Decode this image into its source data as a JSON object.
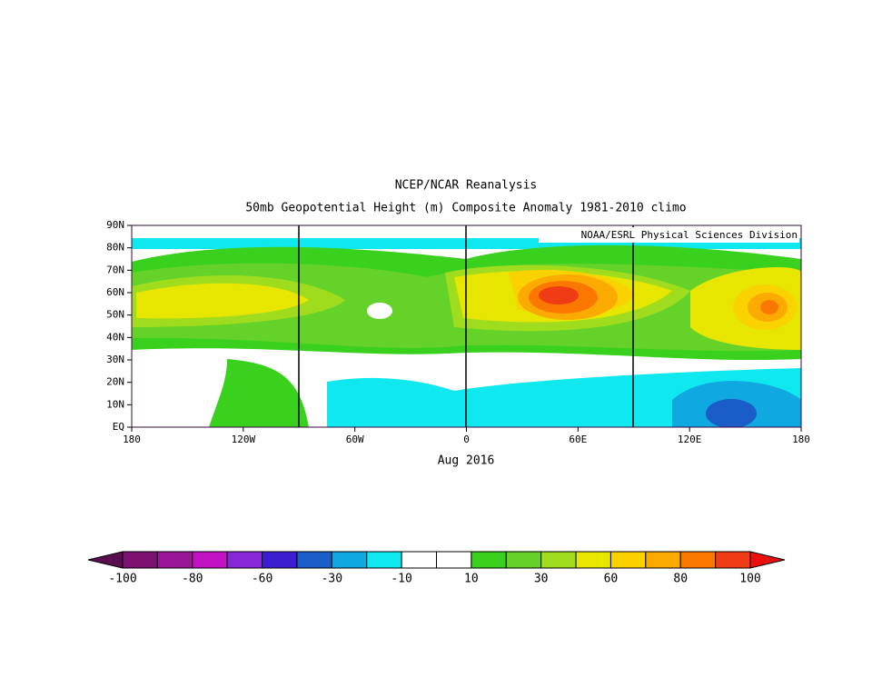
{
  "title": "NCEP/NCAR Reanalysis",
  "subtitle": "50mb Geopotential Height (m) Composite Anomaly 1981-2010 climo",
  "credit": "NOAA/ESRL Physical Sciences Division",
  "date": "Aug 2016",
  "lat_labels": [
    "EQ",
    "10N",
    "20N",
    "30N",
    "40N",
    "50N",
    "60N",
    "70N",
    "80N",
    "90N"
  ],
  "lon_labels": [
    "180",
    "120W",
    "60W",
    "0",
    "60E",
    "120E",
    "180"
  ],
  "colorbar": {
    "labels": [
      -100,
      -80,
      -60,
      -30,
      -10,
      10,
      30,
      60,
      80,
      100
    ],
    "low_color": "#5a1050",
    "high_color": "#e81010",
    "colors": [
      "#7d1270",
      "#9a1699",
      "#c012c0",
      "#8828d8",
      "#3c1ed0",
      "#1a5cc8",
      "#10a8e0",
      "#10e8f0",
      "#ffffff",
      "#ffffff",
      "#3ad01e",
      "#64d228",
      "#a0dc1e",
      "#e6e600",
      "#fad200",
      "#faaa00",
      "#fa7800",
      "#f03c14"
    ]
  }
}
